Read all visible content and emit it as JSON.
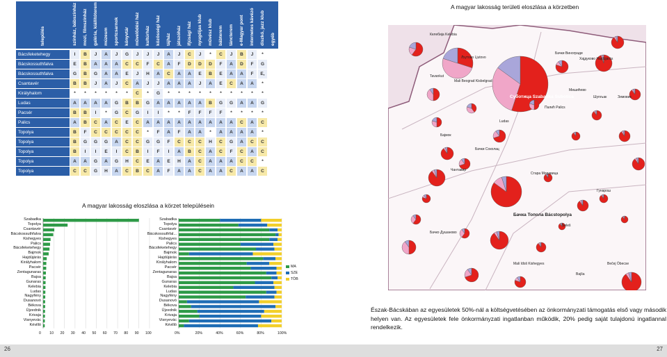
{
  "page_numbers": {
    "left": "26",
    "right": "27"
  },
  "titles": {
    "map_title": "A magyar lakosság területi eloszlása a körzetben",
    "charts_title": "A magyar lakosság eloszlása a körzet településein"
  },
  "matrix": {
    "header_settlement": "település",
    "columns": [
      "színház, bábszínház",
      "mozi, filmszínház",
      "galéria, kiállítóterem",
      "múzeum",
      "sportcsarnok",
      "könyvtár",
      "művelődési ház",
      "kultúrház",
      "közösségi ház",
      "tájház",
      "játszóház",
      "ifjúsági ház",
      "nyugdíjas klub",
      "művész klub",
      "bábterem",
      "táncterem",
      "e-Magyar pont",
      "internetes kávézó",
      "diszkó, jazz klub",
      "egyéb"
    ],
    "rows": [
      {
        "name": "Bácsfeketehegy",
        "cells": [
          "I",
          "B",
          "J",
          "A",
          "J",
          "G",
          "J",
          "J",
          "J",
          "A",
          "J",
          "C",
          "J",
          "*",
          "C",
          "J",
          "B",
          "J",
          "*",
          ""
        ]
      },
      {
        "name": "Bácskossuthfalva",
        "cells": [
          "E",
          "B",
          "A",
          "A",
          "A",
          "C",
          "C",
          "F",
          "C",
          "A",
          "F",
          "D",
          "D",
          "D",
          "F",
          "A",
          "D",
          "F",
          "G",
          ""
        ]
      },
      {
        "name": "Bácskossuthfalva",
        "cells": [
          "G",
          "B",
          "G",
          "A",
          "A",
          "E",
          "J",
          "H",
          "A",
          "C",
          "A",
          "A",
          "E",
          "B",
          "E",
          "A",
          "A",
          "F",
          "E,",
          ""
        ]
      },
      {
        "name": "Csantavér",
        "cells": [
          "B",
          "B",
          "J",
          "A",
          "J",
          "C",
          "A",
          "J",
          "J",
          "A",
          "A",
          "A",
          "J",
          "A",
          "E",
          "C",
          "A",
          "A",
          "*",
          ""
        ]
      },
      {
        "name": "Királyhalom",
        "cells": [
          "*",
          "*",
          "*",
          "*",
          "*",
          "*",
          "C",
          "*",
          "G",
          "*",
          "*",
          "*",
          "*",
          "*",
          "*",
          "*",
          "*",
          "*",
          "*",
          ""
        ]
      },
      {
        "name": "Ludas",
        "cells": [
          "A",
          "A",
          "A",
          "A",
          "G",
          "B",
          "B",
          "G",
          "A",
          "A",
          "A",
          "A",
          "A",
          "B",
          "G",
          "G",
          "A",
          "A",
          "G",
          ""
        ]
      },
      {
        "name": "Pacsér",
        "cells": [
          "B",
          "B",
          "I",
          "*",
          "G",
          "C",
          "G",
          "I",
          "I",
          "*",
          "*",
          "F",
          "F",
          "F",
          "F",
          "*",
          "*",
          "*",
          "*",
          ""
        ]
      },
      {
        "name": "Palics",
        "cells": [
          "A",
          "B",
          "C",
          "A",
          "C",
          "E",
          "C",
          "A",
          "A",
          "A",
          "A",
          "A",
          "A",
          "A",
          "A",
          "A",
          "C",
          "A",
          "C",
          ""
        ]
      },
      {
        "name": "Topolya",
        "cells": [
          "B",
          "F",
          "C",
          "C",
          "C",
          "C",
          "C",
          "*",
          "F",
          "A",
          "F",
          "A",
          "A",
          "*",
          "A",
          "A",
          "A",
          "A",
          "*",
          ""
        ]
      },
      {
        "name": "Topolya",
        "cells": [
          "B",
          "G",
          "G",
          "G",
          "A",
          "C",
          "C",
          "G",
          "G",
          "F",
          "C",
          "C",
          "C",
          "H",
          "C",
          "G",
          "A",
          "C",
          "C",
          ""
        ]
      },
      {
        "name": "Topolya",
        "cells": [
          "B",
          "I",
          "I",
          "E",
          "I",
          "C",
          "B",
          "I",
          "F",
          "I",
          "A",
          "B",
          "C",
          "A",
          "C",
          "F",
          "C",
          "A",
          "C",
          ""
        ]
      },
      {
        "name": "Topolya",
        "cells": [
          "A",
          "A",
          "G",
          "A",
          "G",
          "H",
          "C",
          "E",
          "A",
          "E",
          "H",
          "A",
          "C",
          "A",
          "A",
          "A",
          "C",
          "C",
          "*",
          ""
        ]
      },
      {
        "name": "Topolya",
        "cells": [
          "C",
          "C",
          "G",
          "H",
          "A",
          "C",
          "B",
          "C",
          "A",
          "F",
          "A",
          "A",
          "C",
          "A",
          "A",
          "C",
          "A",
          "A",
          "C",
          ""
        ]
      }
    ]
  },
  "chart_data": [
    {
      "type": "bar",
      "categories": [
        "Szabadka",
        "Topolya",
        "Csantavér",
        "Bácskossuthfalva",
        "Kishegyes",
        "Palics",
        "Bácsfeketehegy",
        "Bajmok",
        "Hajdújárás",
        "Királyhalom",
        "Pacsér",
        "Zentagunaras",
        "Bajsa",
        "Gunaras",
        "Kelebia",
        "Ludas",
        "Nagyfény",
        "Dusanovó",
        "Békova",
        "Újzednik",
        "Krivaja",
        "Visnyevác",
        "Kévilló"
      ],
      "series": [
        {
          "values": [
            90.0,
            23.0,
            10.5,
            9.5,
            7.0,
            6.5,
            6.0,
            5.2,
            3.4,
            3.0,
            2.9,
            2.6,
            2.4,
            2.3,
            2.2,
            2.1,
            2.0,
            1.9,
            1.9,
            1.8,
            1.7,
            1.6,
            1.5
          ]
        }
      ],
      "xlim": [
        0,
        100
      ],
      "xticks": [
        "0",
        "10",
        "20",
        "30",
        "40",
        "50",
        "60",
        "70",
        "80",
        "90",
        "100"
      ]
    },
    {
      "type": "bar",
      "categories": [
        "Szabadka",
        "Topolya",
        "Csantavér",
        "Bácskossuthfal...",
        "Kishegyes",
        "Palics",
        "Bácsfeketehegy",
        "Bajmok",
        "Hajdújárás",
        "Királyhalom",
        "Pacsér",
        "Zentagunaras",
        "Bajsa",
        "Gunaras",
        "Kelebia",
        "Ludas",
        "Nagyfény",
        "Dusanovó",
        "Békova",
        "Újzednik",
        "Krivaja",
        "Visnyevác",
        "Kévilló"
      ],
      "series": [
        {
          "name": "MA",
          "values": [
            40,
            58,
            88,
            94,
            88,
            60,
            75,
            10,
            82,
            66,
            70,
            85,
            90,
            74,
            53,
            85,
            65,
            8,
            12,
            18,
            20,
            10,
            5
          ]
        },
        {
          "name": "SZE",
          "values": [
            40,
            28,
            8,
            3,
            8,
            32,
            18,
            62,
            12,
            22,
            25,
            10,
            6,
            18,
            40,
            10,
            28,
            70,
            82,
            65,
            60,
            80,
            72
          ]
        },
        {
          "name": "TÖB",
          "values": [
            20,
            14,
            4,
            3,
            4,
            8,
            7,
            28,
            6,
            12,
            5,
            5,
            4,
            8,
            7,
            5,
            7,
            22,
            6,
            17,
            20,
            10,
            23
          ]
        }
      ],
      "xlim": [
        0,
        100
      ],
      "xticks": [
        "0%",
        "20%",
        "40%",
        "60%",
        "80%",
        "100%"
      ]
    }
  ],
  "map": {
    "labels": [
      "Келебија Kelebia",
      "Mali Beograd Kisbelgrad",
      "Љутово Ljutovo",
      "Tavankut",
      "Суботица Szabadka Subotica",
      "Бачки Виногради",
      "Хајдуково Hajdújárás",
      "Палић Palics",
      "Ludas",
      "Шупљак",
      "Мишићево",
      "Бајмок",
      "Бачки Соколац",
      "Чантавир",
      "Бачка Топола Bácstopolya",
      "Mali Iđoš Kishegyes",
      "Seleš",
      "Bajša",
      "Bečej Óbecse",
      "Гунарош",
      "Бачко Душаново",
      "Зимовик",
      "Старa Моравица"
    ],
    "colors": {
      "pie_main": "#e3211c",
      "pie_secondary": "#f0a6c8",
      "pie_other": "#a9a6da",
      "grey": "#b4b4b4"
    }
  },
  "caption": "Észak-Bácskában az egyesületek 50%-nál a költségvetésében az önkormányzati támogatás első vagy második helyen van. Az egyesületek fele önkormányzati ingatlanban működik, 20% pedig saját tulajdonú ingatlannal rendelkezik."
}
